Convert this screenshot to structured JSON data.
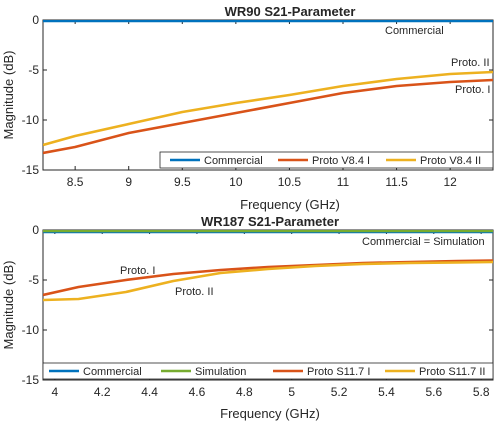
{
  "chart_data": [
    {
      "type": "line",
      "title": "WR90 S21-Parameter",
      "xlabel": "Frequency (GHz)",
      "ylabel": "Magnitude (dB)",
      "xlim": [
        8.2,
        12.4
      ],
      "ylim": [
        -15,
        0
      ],
      "xticks": [
        "8.5",
        "9",
        "9.5",
        "10",
        "10.5",
        "11",
        "11.5",
        "12"
      ],
      "yticks": [
        "0",
        "-5",
        "-10",
        "-15"
      ],
      "grid": false,
      "legend_position": "bottom",
      "series": [
        {
          "name": "Commercial",
          "color": "#0072BD",
          "x": [
            8.2,
            12.4
          ],
          "y": [
            -0.1,
            -0.1
          ]
        },
        {
          "name": "Proto V8.4 I",
          "color": "#D95319",
          "x": [
            8.2,
            8.5,
            9.0,
            9.5,
            10.0,
            10.5,
            11.0,
            11.5,
            12.0,
            12.4
          ],
          "y": [
            -13.3,
            -12.7,
            -11.3,
            -10.3,
            -9.3,
            -8.3,
            -7.3,
            -6.6,
            -6.2,
            -6.0
          ]
        },
        {
          "name": "Proto V8.4 II",
          "color": "#EDB120",
          "x": [
            8.2,
            8.5,
            9.0,
            9.5,
            10.0,
            10.5,
            11.0,
            11.5,
            12.0,
            12.4
          ],
          "y": [
            -12.5,
            -11.6,
            -10.4,
            -9.2,
            -8.3,
            -7.5,
            -6.6,
            -5.9,
            -5.4,
            -5.2
          ]
        }
      ],
      "annotations": [
        "Commercial",
        "Proto. II",
        "Proto. I"
      ]
    },
    {
      "type": "line",
      "title": "WR187 S21-Parameter",
      "xlabel": "Frequency (GHz)",
      "ylabel": "Magnitude (dB)",
      "xlim": [
        3.95,
        5.85
      ],
      "ylim": [
        -15,
        0
      ],
      "xticks": [
        "4",
        "4.2",
        "4.4",
        "4.6",
        "4.8",
        "5",
        "5.2",
        "5.4",
        "5.6",
        "5.8"
      ],
      "yticks": [
        "0",
        "-5",
        "-10",
        "-15"
      ],
      "grid": false,
      "legend_position": "bottom",
      "series": [
        {
          "name": "Commercial",
          "color": "#0072BD",
          "x": [
            3.95,
            5.85
          ],
          "y": [
            -0.2,
            -0.2
          ]
        },
        {
          "name": "Simulation",
          "color": "#77AC30",
          "x": [
            3.95,
            5.85
          ],
          "y": [
            -0.1,
            -0.1
          ]
        },
        {
          "name": "Proto S11.7 I",
          "color": "#D95319",
          "x": [
            3.95,
            4.1,
            4.3,
            4.5,
            4.7,
            4.9,
            5.1,
            5.3,
            5.5,
            5.7,
            5.85
          ],
          "y": [
            -6.5,
            -5.7,
            -5.0,
            -4.4,
            -4.0,
            -3.7,
            -3.5,
            -3.3,
            -3.2,
            -3.1,
            -3.05
          ]
        },
        {
          "name": "Proto S11.7 II",
          "color": "#EDB120",
          "x": [
            3.95,
            4.1,
            4.3,
            4.5,
            4.7,
            4.9,
            5.1,
            5.3,
            5.5,
            5.7,
            5.85
          ],
          "y": [
            -7.0,
            -6.9,
            -6.2,
            -5.1,
            -4.3,
            -3.9,
            -3.6,
            -3.4,
            -3.3,
            -3.25,
            -3.2
          ]
        }
      ],
      "annotations": [
        "Commercial = Simulation",
        "Proto. I",
        "Proto. II"
      ]
    }
  ]
}
